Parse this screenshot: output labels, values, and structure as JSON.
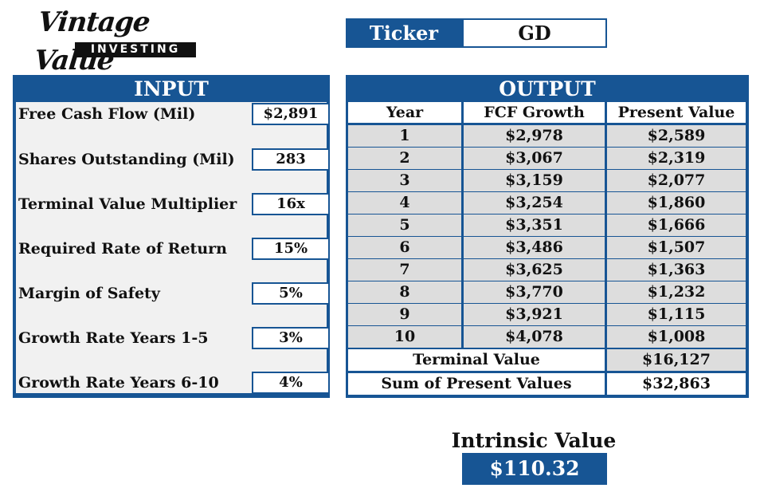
{
  "logo": {
    "script": "Vintage Value",
    "bar": "INVESTING"
  },
  "ticker": {
    "label": "Ticker",
    "value": "GD"
  },
  "input": {
    "title": "INPUT",
    "rows": [
      {
        "label": "Free Cash Flow (Mil)",
        "value": "$2,891"
      },
      {
        "label": "Shares Outstanding (Mil)",
        "value": "283"
      },
      {
        "label": "Terminal Value Multiplier",
        "value": "16x"
      },
      {
        "label": "Required Rate of Return",
        "value": "15%"
      },
      {
        "label": "Margin of Safety",
        "value": "5%"
      },
      {
        "label": "Growth Rate Years 1-5",
        "value": "3%"
      },
      {
        "label": "Growth Rate Years 6-10",
        "value": "4%"
      }
    ]
  },
  "output": {
    "title": "OUTPUT",
    "headers": [
      "Year",
      "FCF Growth",
      "Present Value"
    ],
    "rows": [
      {
        "year": "1",
        "fcf": "$2,978",
        "pv": "$2,589"
      },
      {
        "year": "2",
        "fcf": "$3,067",
        "pv": "$2,319"
      },
      {
        "year": "3",
        "fcf": "$3,159",
        "pv": "$2,077"
      },
      {
        "year": "4",
        "fcf": "$3,254",
        "pv": "$1,860"
      },
      {
        "year": "5",
        "fcf": "$3,351",
        "pv": "$1,666"
      },
      {
        "year": "6",
        "fcf": "$3,486",
        "pv": "$1,507"
      },
      {
        "year": "7",
        "fcf": "$3,625",
        "pv": "$1,363"
      },
      {
        "year": "8",
        "fcf": "$3,770",
        "pv": "$1,232"
      },
      {
        "year": "9",
        "fcf": "$3,921",
        "pv": "$1,115"
      },
      {
        "year": "10",
        "fcf": "$4,078",
        "pv": "$1,008"
      }
    ],
    "terminal_label": "Terminal Value",
    "terminal_value": "$16,127",
    "sum_label": "Sum of Present Values",
    "sum_value": "$32,863"
  },
  "intrinsic": {
    "label": "Intrinsic Value",
    "value": "$110.32"
  },
  "colors": {
    "accent": "#175594",
    "grey_cell": "#dddddd",
    "input_bg": "#f1f1f1"
  }
}
